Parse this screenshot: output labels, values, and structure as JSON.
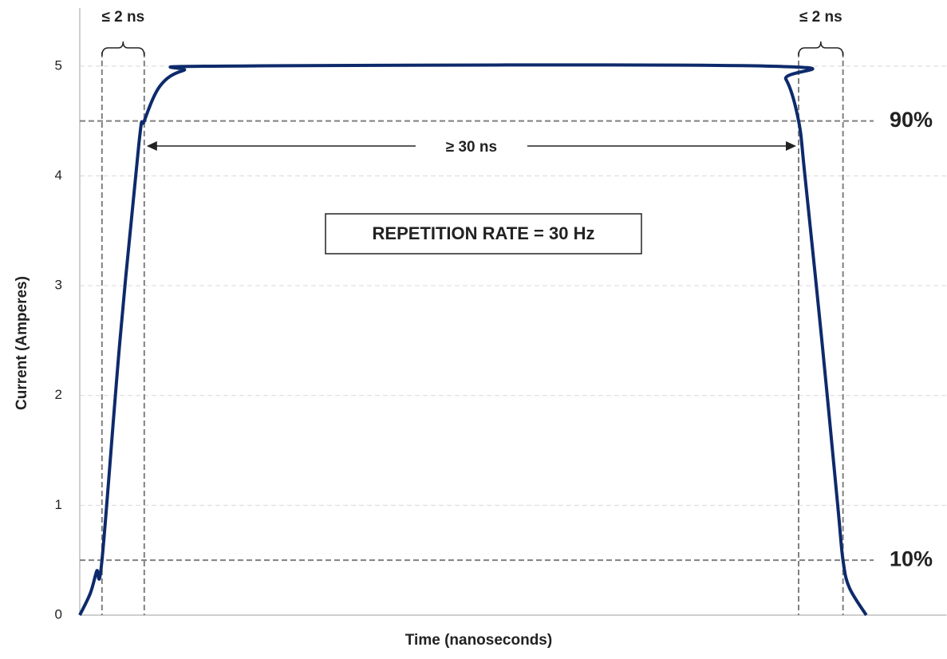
{
  "chart_data": {
    "type": "line",
    "y_label": "Current (Amperes)",
    "x_label": "Time (nanoseconds)",
    "x": [
      0,
      0.5,
      0.8,
      1.05,
      1.9,
      2.8,
      3.05,
      3.8,
      4.9,
      6.8,
      32.5,
      33.4,
      34.0,
      34.3,
      35.1,
      35.85,
      36.1,
      36.4,
      37.2
    ],
    "series": [
      {
        "color": "#0d2a6b",
        "values": [
          0,
          0.2,
          0.4,
          0.5,
          2.5,
          4.3,
          4.5,
          4.82,
          4.96,
          5.0,
          5.0,
          4.88,
          4.5,
          4.0,
          2.5,
          1.0,
          0.5,
          0.25,
          0
        ]
      }
    ],
    "xlim": [
      0,
      41
    ],
    "ylim": [
      0,
      5.5
    ],
    "yticks": [
      0,
      1,
      2,
      3,
      4,
      5
    ],
    "grid": true,
    "reference_x": [
      1.05,
      3.05,
      34.0,
      36.1
    ],
    "reference_y": [
      {
        "y": 4.5,
        "text": "90%"
      },
      {
        "y": 0.5,
        "text": "10%"
      }
    ],
    "rise_label": "≤ 2 ns",
    "fall_label": "≤ 2 ns",
    "width_label": "≥ 30 ns",
    "box_label": "REPETITION RATE = 30 Hz"
  }
}
